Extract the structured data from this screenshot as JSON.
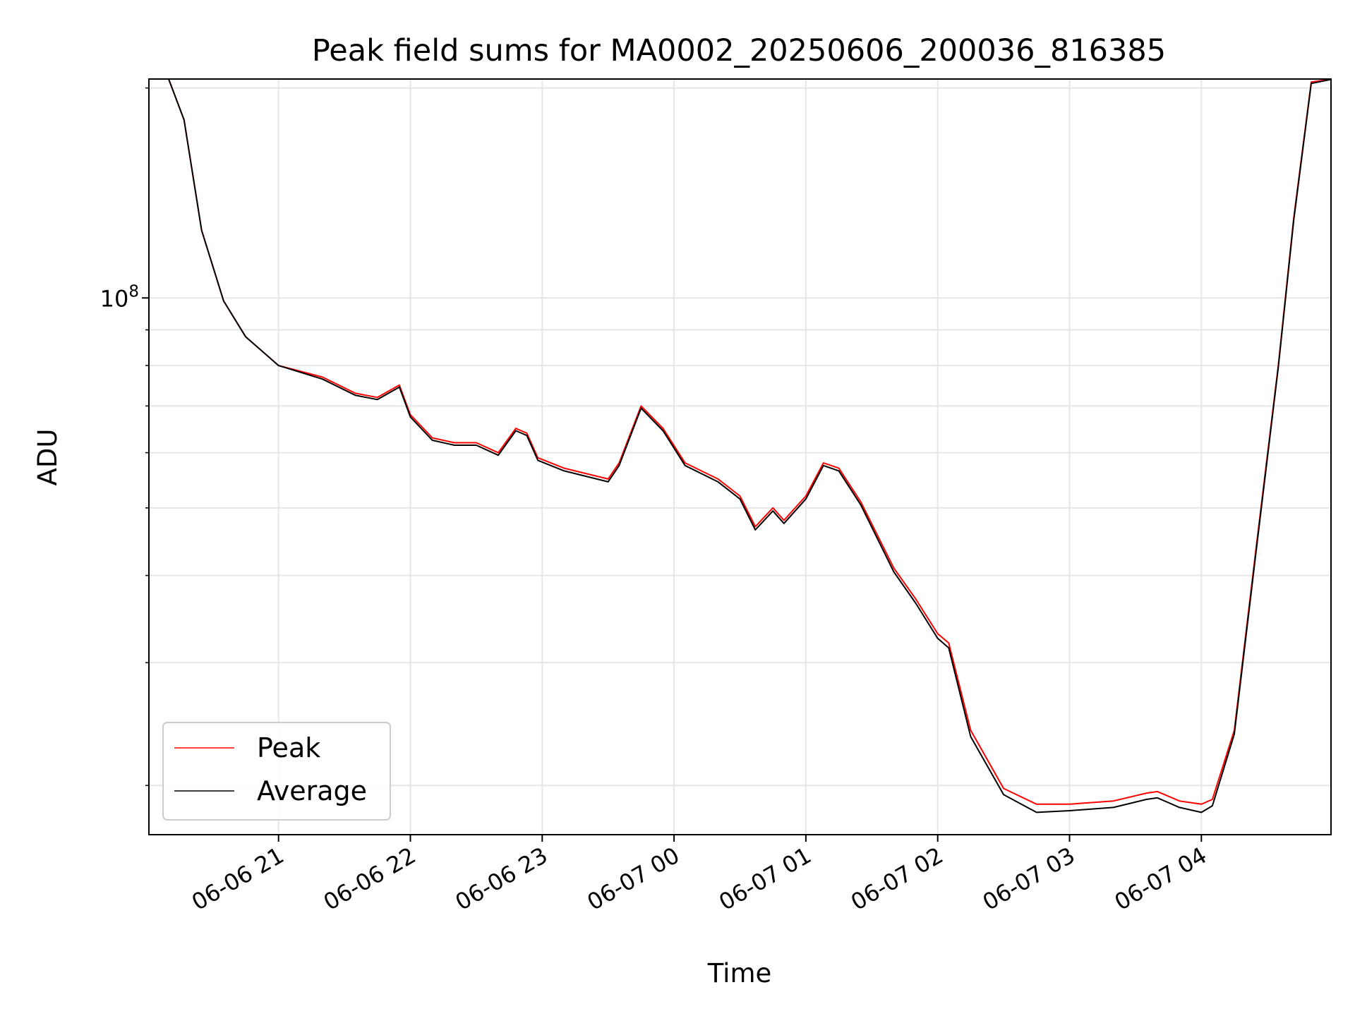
{
  "chart_data": {
    "type": "line",
    "title": "Peak field sums for MA0002_20250606_200036_816385",
    "xlabel": "Time",
    "ylabel": "ADU",
    "yscale": "log",
    "grid": true,
    "legend_position": "lower-left",
    "xlim": [
      "2025-06-06 20:01",
      "2025-06-07 04:59"
    ],
    "ylim": [
      17000000,
      206000000
    ],
    "x_ticks": [
      {
        "value": "2025-06-06 21:00",
        "label": "06-06 21"
      },
      {
        "value": "2025-06-06 22:00",
        "label": "06-06 22"
      },
      {
        "value": "2025-06-06 23:00",
        "label": "06-06 23"
      },
      {
        "value": "2025-06-07 00:00",
        "label": "06-07 00"
      },
      {
        "value": "2025-06-07 01:00",
        "label": "06-07 01"
      },
      {
        "value": "2025-06-07 02:00",
        "label": "06-07 02"
      },
      {
        "value": "2025-06-07 03:00",
        "label": "06-07 03"
      },
      {
        "value": "2025-06-07 04:00",
        "label": "06-07 04"
      }
    ],
    "y_major_ticks": [
      {
        "value": 100000000,
        "label_base": "10",
        "label_exp": "8"
      }
    ],
    "y_minor_ticks": [
      20000000,
      30000000,
      40000000,
      50000000,
      60000000,
      70000000,
      80000000,
      90000000,
      200000000
    ],
    "series": [
      {
        "name": "Peak",
        "color": "#ff0000",
        "x": [
          "2025-06-06 20:00",
          "2025-06-06 20:10",
          "2025-06-06 20:17",
          "2025-06-06 20:25",
          "2025-06-06 20:35",
          "2025-06-06 20:45",
          "2025-06-06 21:00",
          "2025-06-06 21:20",
          "2025-06-06 21:35",
          "2025-06-06 21:45",
          "2025-06-06 21:55",
          "2025-06-06 22:00",
          "2025-06-06 22:10",
          "2025-06-06 22:20",
          "2025-06-06 22:30",
          "2025-06-06 22:40",
          "2025-06-06 22:48",
          "2025-06-06 22:53",
          "2025-06-06 22:58",
          "2025-06-06 23:10",
          "2025-06-06 23:30",
          "2025-06-06 23:35",
          "2025-06-06 23:45",
          "2025-06-06 23:55",
          "2025-06-07 00:05",
          "2025-06-07 00:20",
          "2025-06-07 00:30",
          "2025-06-07 00:37",
          "2025-06-07 00:45",
          "2025-06-07 00:50",
          "2025-06-07 01:00",
          "2025-06-07 01:08",
          "2025-06-07 01:15",
          "2025-06-07 01:25",
          "2025-06-07 01:40",
          "2025-06-07 01:50",
          "2025-06-07 02:00",
          "2025-06-07 02:05",
          "2025-06-07 02:15",
          "2025-06-07 02:30",
          "2025-06-07 02:45",
          "2025-06-07 03:00",
          "2025-06-07 03:20",
          "2025-06-07 03:35",
          "2025-06-07 03:40",
          "2025-06-07 03:50",
          "2025-06-07 04:00",
          "2025-06-07 04:05",
          "2025-06-07 04:15",
          "2025-06-07 04:25",
          "2025-06-07 04:35",
          "2025-06-07 04:42",
          "2025-06-07 04:50",
          "2025-06-07 05:00"
        ],
        "values": [
          206000000,
          206000000,
          180000000,
          125000000,
          99000000,
          88000000,
          80000000,
          77000000,
          73000000,
          72000000,
          75000000,
          68000000,
          63000000,
          62000000,
          62000000,
          60000000,
          65000000,
          64000000,
          59000000,
          57000000,
          55000000,
          58000000,
          70000000,
          65000000,
          58000000,
          55000000,
          52000000,
          47000000,
          50000000,
          48000000,
          52000000,
          58000000,
          57000000,
          51000000,
          41000000,
          37000000,
          33000000,
          32000000,
          24000000,
          19800000,
          18800000,
          18800000,
          19000000,
          19500000,
          19600000,
          19000000,
          18800000,
          19100000,
          24000000,
          44000000,
          80000000,
          130000000,
          204000000,
          206000000
        ]
      },
      {
        "name": "Average",
        "color": "#000000",
        "x": [
          "2025-06-06 20:00",
          "2025-06-06 20:10",
          "2025-06-06 20:17",
          "2025-06-06 20:25",
          "2025-06-06 20:35",
          "2025-06-06 20:45",
          "2025-06-06 21:00",
          "2025-06-06 21:20",
          "2025-06-06 21:35",
          "2025-06-06 21:45",
          "2025-06-06 21:55",
          "2025-06-06 22:00",
          "2025-06-06 22:10",
          "2025-06-06 22:20",
          "2025-06-06 22:30",
          "2025-06-06 22:40",
          "2025-06-06 22:48",
          "2025-06-06 22:53",
          "2025-06-06 22:58",
          "2025-06-06 23:10",
          "2025-06-06 23:30",
          "2025-06-06 23:35",
          "2025-06-06 23:45",
          "2025-06-06 23:55",
          "2025-06-07 00:05",
          "2025-06-07 00:20",
          "2025-06-07 00:30",
          "2025-06-07 00:37",
          "2025-06-07 00:45",
          "2025-06-07 00:50",
          "2025-06-07 01:00",
          "2025-06-07 01:08",
          "2025-06-07 01:15",
          "2025-06-07 01:25",
          "2025-06-07 01:40",
          "2025-06-07 01:50",
          "2025-06-07 02:00",
          "2025-06-07 02:05",
          "2025-06-07 02:15",
          "2025-06-07 02:30",
          "2025-06-07 02:45",
          "2025-06-07 03:00",
          "2025-06-07 03:20",
          "2025-06-07 03:35",
          "2025-06-07 03:40",
          "2025-06-07 03:50",
          "2025-06-07 04:00",
          "2025-06-07 04:05",
          "2025-06-07 04:15",
          "2025-06-07 04:25",
          "2025-06-07 04:35",
          "2025-06-07 04:42",
          "2025-06-07 04:50",
          "2025-06-07 05:00"
        ],
        "values": [
          206000000,
          206000000,
          180000000,
          125000000,
          99000000,
          88000000,
          80000000,
          76500000,
          72500000,
          71500000,
          74500000,
          67500000,
          62500000,
          61500000,
          61500000,
          59500000,
          64500000,
          63500000,
          58500000,
          56500000,
          54500000,
          57500000,
          69500000,
          64500000,
          57500000,
          54500000,
          51500000,
          46500000,
          49500000,
          47500000,
          51500000,
          57500000,
          56500000,
          50500000,
          40500000,
          36500000,
          32500000,
          31500000,
          23500000,
          19400000,
          18300000,
          18400000,
          18600000,
          19100000,
          19200000,
          18600000,
          18300000,
          18700000,
          23700000,
          43500000,
          79500000,
          129000000,
          203000000,
          206000000
        ]
      }
    ]
  }
}
